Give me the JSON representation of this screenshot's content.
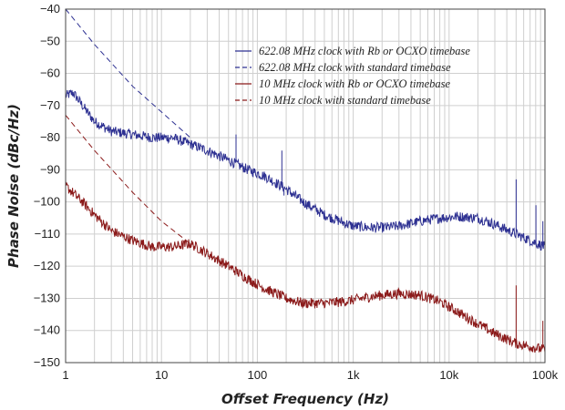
{
  "chart_data": {
    "type": "line",
    "title": "",
    "xlabel": "Offset Frequency (Hz)",
    "ylabel": "Phase Noise (dBc/Hz)",
    "xscale": "log",
    "xlim": [
      1,
      100000
    ],
    "ylim": [
      -150,
      -40
    ],
    "grid": true,
    "legend_position": "top-right",
    "x_ticks": [
      {
        "value": 1,
        "label": "1"
      },
      {
        "value": 10,
        "label": "10"
      },
      {
        "value": 100,
        "label": "100"
      },
      {
        "value": 1000,
        "label": "1k"
      },
      {
        "value": 10000,
        "label": "10k"
      },
      {
        "value": 100000,
        "label": "100k"
      }
    ],
    "y_ticks": [
      {
        "value": -40,
        "label": "−40"
      },
      {
        "value": -50,
        "label": "−50"
      },
      {
        "value": -60,
        "label": "−60"
      },
      {
        "value": -70,
        "label": "−70"
      },
      {
        "value": -80,
        "label": "−80"
      },
      {
        "value": -90,
        "label": "−90"
      },
      {
        "value": -100,
        "label": "−100"
      },
      {
        "value": -110,
        "label": "−110"
      },
      {
        "value": -120,
        "label": "−120"
      },
      {
        "value": -130,
        "label": "−130"
      },
      {
        "value": -140,
        "label": "−140"
      },
      {
        "value": -150,
        "label": "−150"
      }
    ],
    "series": [
      {
        "name": "622.08 MHz clock with Rb or OCXO timebase",
        "color": "#2e3192",
        "dash": "solid",
        "noise": 1.6,
        "x": [
          1,
          1.2,
          1.5,
          2,
          3,
          5,
          8,
          13,
          20,
          30,
          50,
          80,
          120,
          200,
          300,
          500,
          800,
          1000,
          1500,
          2000,
          3000,
          5000,
          8000,
          12000,
          20000,
          30000,
          50000,
          70000,
          100000
        ],
        "y": [
          -67,
          -66,
          -70,
          -75,
          -78,
          -79,
          -80,
          -80,
          -82,
          -84,
          -87,
          -90,
          -92,
          -96,
          -100,
          -104,
          -106.5,
          -107.5,
          -108,
          -108,
          -107.5,
          -106,
          -105,
          -104.5,
          -105,
          -107,
          -110,
          -112,
          -114
        ],
        "spikes": [
          {
            "x": 60,
            "y": -79
          },
          {
            "x": 120,
            "y": -91
          },
          {
            "x": 180,
            "y": -84
          },
          {
            "x": 190,
            "y": -98
          },
          {
            "x": 50000,
            "y": -93
          },
          {
            "x": 80000,
            "y": -101
          },
          {
            "x": 95000,
            "y": -106
          }
        ]
      },
      {
        "name": "622.08 MHz clock with standard timebase",
        "color": "#2e3192",
        "dash": "dashed",
        "noise": 0,
        "x": [
          1,
          2,
          5,
          10,
          20
        ],
        "y": [
          -40,
          -51,
          -64,
          -72,
          -80
        ],
        "spikes": []
      },
      {
        "name": "10 MHz clock with Rb or OCXO timebase",
        "color": "#8b1a1a",
        "dash": "solid",
        "noise": 1.6,
        "x": [
          1,
          1.5,
          2,
          3,
          5,
          8,
          13,
          20,
          30,
          50,
          80,
          120,
          200,
          300,
          500,
          800,
          1000,
          1500,
          2000,
          3000,
          5000,
          8000,
          12000,
          20000,
          30000,
          50000,
          70000,
          100000
        ],
        "y": [
          -95,
          -100,
          -104,
          -109,
          -112,
          -114,
          -114,
          -113,
          -116,
          -120,
          -124,
          -127,
          -130,
          -131.5,
          -131.5,
          -131,
          -130.5,
          -129.5,
          -129,
          -128.5,
          -129,
          -131,
          -134,
          -138,
          -141,
          -144,
          -145,
          -146
        ],
        "spikes": [
          {
            "x": 50000,
            "y": -126
          },
          {
            "x": 95000,
            "y": -137
          }
        ]
      },
      {
        "name": "10 MHz clock with standard timebase",
        "color": "#8b1a1a",
        "dash": "dashed",
        "noise": 0,
        "x": [
          1,
          2,
          5,
          10,
          20
        ],
        "y": [
          -73,
          -84,
          -97,
          -106,
          -113
        ],
        "spikes": []
      }
    ]
  }
}
